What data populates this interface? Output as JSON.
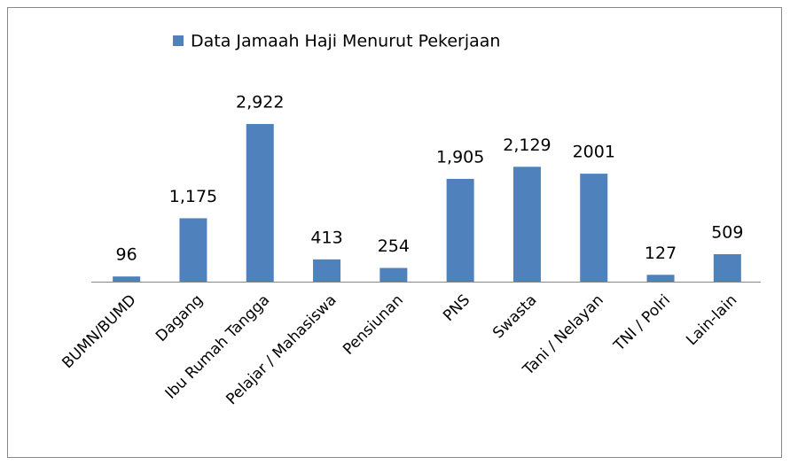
{
  "chart_data": {
    "type": "bar",
    "legend": "Data Jamaah Haji Menurut Pekerjaan",
    "categories": [
      "BUMN/BUMD",
      "Dagang",
      "Ibu Rumah Tangga",
      "Pelajar / Mahasiswa",
      "Pensiunan",
      "PNS",
      "Swasta",
      "Tani / Nelayan",
      "TNI / Polri",
      "Lain-lain"
    ],
    "values": [
      96,
      1175,
      2922,
      413,
      254,
      1905,
      2129,
      2001,
      127,
      509
    ],
    "value_labels": [
      "96",
      "1,175",
      "2,922",
      "413",
      "254",
      "1,905",
      "2,129",
      "2001",
      "127",
      "509"
    ],
    "color": "#4f81bd"
  }
}
